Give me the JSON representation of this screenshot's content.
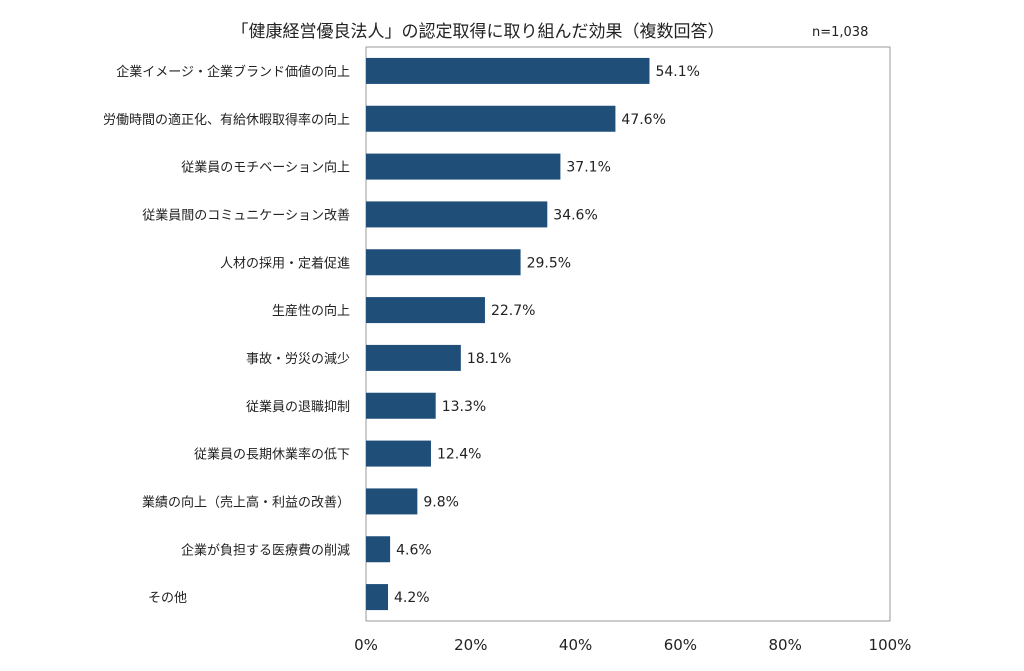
{
  "chart_data": {
    "type": "bar",
    "orientation": "horizontal",
    "title": "「健康経営優良法人」の認定取得に取り組んだ効果（複数回答）",
    "note": "n=1,038",
    "categories": [
      "企業イメージ・企業ブランド価値の向上",
      "労働時間の適正化、有給休暇取得率の向上",
      "従業員のモチベーション向上",
      "従業員間のコミュニケーション改善",
      "人材の採用・定着促進",
      "生産性の向上",
      "事故・労災の減少",
      "従業員の退職抑制",
      "従業員の長期休業率の低下",
      "業績の向上（売上高・利益の改善）",
      "企業が負担する医療費の削減",
      "その他"
    ],
    "values": [
      54.1,
      47.6,
      37.1,
      34.6,
      29.5,
      22.7,
      18.1,
      13.3,
      12.4,
      9.8,
      4.6,
      4.2
    ],
    "value_labels": [
      "54.1%",
      "47.6%",
      "37.1%",
      "34.6%",
      "29.5%",
      "22.7%",
      "18.1%",
      "13.3%",
      "12.4%",
      "9.8%",
      "4.6%",
      "4.2%"
    ],
    "xlim": [
      0,
      100
    ],
    "xticks": [
      0,
      20,
      40,
      60,
      80,
      100
    ],
    "xtick_labels": [
      "0%",
      "20%",
      "40%",
      "60%",
      "80%",
      "100%"
    ],
    "grid": false,
    "bar_color": "#1F4E79",
    "xlabel": "",
    "ylabel": ""
  }
}
